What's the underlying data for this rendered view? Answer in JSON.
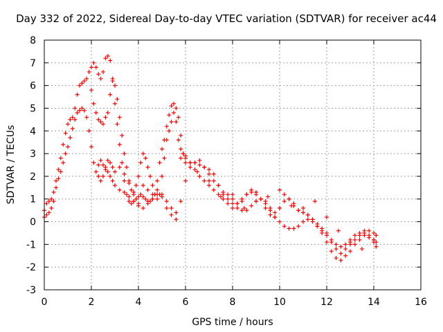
{
  "chart_data": {
    "type": "scatter",
    "title": "Day 332 of 2022, Sidereal Day-to-day VTEC variation (SDTVAR) for receiver ac44",
    "xlabel": "GPS time / hours",
    "ylabel": "SDTVAR / TECUs",
    "xlim": [
      0,
      16
    ],
    "ylim": [
      -3,
      8
    ],
    "xticks": [
      "0",
      "2",
      "4",
      "6",
      "8",
      "10",
      "12",
      "14",
      "16"
    ],
    "yticks": [
      "-3",
      "-2",
      "-1",
      "0",
      "1",
      "2",
      "3",
      "4",
      "5",
      "6",
      "7",
      "8"
    ],
    "grid": true,
    "marker": "+",
    "color": "#ff0000",
    "series": [
      {
        "x": [
          0.0,
          0.1,
          0.2,
          0.3,
          0.4,
          0.5,
          0.6,
          0.7,
          0.8,
          0.9,
          1.0,
          1.1,
          1.2,
          1.3,
          1.4,
          1.5,
          1.6,
          1.7,
          1.8,
          1.9,
          2.0,
          2.1,
          2.2,
          2.3,
          2.4,
          2.5,
          2.6,
          2.7,
          2.8,
          2.9,
          3.0,
          3.1,
          3.2,
          3.3,
          3.4,
          3.5,
          3.6,
          3.7,
          3.8,
          3.9,
          4.0,
          4.1,
          4.2,
          4.3,
          4.4,
          4.5,
          4.6,
          4.7,
          4.8,
          4.9,
          5.0,
          5.1,
          5.2,
          5.3,
          5.4,
          5.5,
          5.6,
          5.7,
          5.8,
          5.9,
          6.0,
          6.2,
          6.4,
          6.6,
          6.8,
          7.0,
          7.2,
          7.4,
          7.6,
          7.8,
          8.0,
          8.2,
          8.4,
          8.6,
          8.8,
          9.0,
          9.2,
          9.4,
          9.6,
          9.8,
          10.0,
          10.2,
          10.4,
          10.6,
          10.8,
          11.0,
          11.2,
          11.4,
          11.6,
          11.8,
          12.0,
          12.2,
          12.4,
          12.6,
          12.8,
          13.0,
          13.2,
          13.4,
          13.6,
          13.8,
          14.0,
          14.1
        ],
        "y": [
          0.5,
          0.8,
          0.9,
          1.0,
          1.3,
          1.8,
          2.3,
          2.8,
          3.4,
          3.9,
          4.3,
          4.5,
          4.6,
          5.0,
          5.6,
          6.0,
          6.1,
          6.2,
          6.3,
          6.6,
          6.8,
          7.0,
          6.8,
          6.5,
          6.3,
          6.6,
          7.2,
          7.3,
          7.1,
          6.3,
          5.2,
          4.3,
          3.4,
          2.6,
          1.8,
          1.2,
          0.9,
          0.8,
          0.9,
          1.0,
          1.1,
          1.2,
          1.1,
          1.0,
          0.9,
          0.9,
          1.0,
          1.2,
          1.8,
          2.6,
          3.2,
          3.6,
          4.2,
          4.7,
          5.1,
          5.2,
          4.4,
          3.6,
          3.2,
          3.0,
          2.8,
          2.6,
          2.6,
          2.5,
          2.4,
          2.3,
          2.1,
          1.6,
          1.2,
          1.0,
          0.8,
          0.6,
          0.5,
          0.5,
          0.7,
          0.9,
          1.0,
          0.9,
          0.6,
          0.4,
          0.6,
          0.9,
          1.0,
          0.8,
          0.5,
          0.4,
          0.3,
          0.1,
          -0.2,
          -0.5,
          -0.9,
          -1.3,
          -1.6,
          -1.7,
          -1.5,
          -1.3,
          -1.0,
          -0.8,
          -0.6,
          -0.7,
          -0.8,
          -0.9
        ]
      },
      {
        "x": [
          0.0,
          0.1,
          0.2,
          0.3,
          0.4,
          0.5,
          0.6,
          0.7,
          0.8,
          0.9,
          1.0,
          1.1,
          1.2,
          1.3,
          1.4,
          1.5,
          1.6,
          1.7,
          1.8,
          1.9,
          2.0,
          2.1,
          2.2,
          2.3,
          2.4,
          2.5,
          2.6,
          2.7,
          2.8,
          2.9,
          3.0,
          3.2,
          3.4,
          3.6,
          3.8,
          4.0,
          4.2,
          4.4,
          4.6,
          4.8,
          5.0,
          5.2,
          5.4,
          5.6,
          5.8,
          6.0,
          6.2,
          6.4,
          6.6,
          6.8,
          7.0,
          7.2,
          7.4,
          7.6,
          7.8,
          8.0,
          8.2,
          8.4,
          8.6,
          8.8,
          9.0,
          9.2,
          9.4,
          9.6,
          9.8,
          10.0,
          10.2,
          10.4,
          10.6,
          10.8,
          11.0,
          11.2,
          11.4,
          11.6,
          11.8,
          12.0,
          12.2,
          12.4,
          12.6,
          12.8,
          13.0,
          13.2,
          13.4,
          13.6,
          13.8,
          14.0,
          14.1
        ],
        "y": [
          0.2,
          0.3,
          0.4,
          0.6,
          0.9,
          1.5,
          1.9,
          2.2,
          2.6,
          3.0,
          3.3,
          3.7,
          4.1,
          4.5,
          4.8,
          4.9,
          5.0,
          4.9,
          4.6,
          4.0,
          3.3,
          2.6,
          2.2,
          2.5,
          2.7,
          2.5,
          2.3,
          2.2,
          2.0,
          1.8,
          1.6,
          1.4,
          1.3,
          1.1,
          0.9,
          0.7,
          0.6,
          0.8,
          1.0,
          1.2,
          1.1,
          0.9,
          0.6,
          0.4,
          2.8,
          2.9,
          2.6,
          2.3,
          2.0,
          1.8,
          1.6,
          1.4,
          1.2,
          1.0,
          0.8,
          0.6,
          0.8,
          1.0,
          1.2,
          1.3,
          1.2,
          1.0,
          0.8,
          0.5,
          0.2,
          0.0,
          -0.2,
          -0.3,
          -0.3,
          -0.2,
          0.0,
          0.1,
          0.0,
          -0.2,
          -0.4,
          -0.6,
          -0.9,
          -1.2,
          -1.4,
          -1.2,
          -1.0,
          -0.8,
          -0.6,
          -0.5,
          -0.4,
          -0.5,
          -0.6
        ]
      },
      {
        "x": [
          2.0,
          2.1,
          2.2,
          2.3,
          2.4,
          2.5,
          2.6,
          2.7,
          2.8,
          2.9,
          3.0,
          3.1,
          3.2,
          3.3,
          3.4,
          3.5,
          3.6,
          3.7,
          3.8,
          3.9,
          4.0,
          4.1,
          4.2,
          4.3,
          4.4,
          4.5,
          4.6,
          4.7,
          4.8,
          4.9,
          5.0,
          5.1,
          5.2,
          5.3,
          5.4,
          5.5,
          5.6,
          5.7,
          5.8,
          5.9,
          6.0,
          6.2,
          6.4,
          6.6,
          6.8,
          7.0,
          7.2,
          7.4,
          7.6,
          7.8,
          8.0,
          8.2,
          8.4,
          8.6,
          8.8,
          9.0,
          9.2,
          9.4,
          9.6,
          9.8,
          10.0,
          10.2,
          10.4,
          10.6,
          10.8,
          11.0,
          11.2,
          11.4,
          11.6,
          11.8,
          12.0,
          12.2,
          12.4,
          12.6,
          12.8,
          13.0,
          13.2,
          13.4,
          13.6,
          13.8,
          14.0,
          14.1
        ],
        "y": [
          5.8,
          5.2,
          4.8,
          4.5,
          4.4,
          4.3,
          4.6,
          4.8,
          5.6,
          6.2,
          6.0,
          5.4,
          4.6,
          3.8,
          3.0,
          2.4,
          1.8,
          1.4,
          1.3,
          1.6,
          2.0,
          2.6,
          3.0,
          2.8,
          2.4,
          2.0,
          1.6,
          1.2,
          1.0,
          1.2,
          2.0,
          2.8,
          3.6,
          4.0,
          4.4,
          4.8,
          5.0,
          4.6,
          3.8,
          3.0,
          2.6,
          2.4,
          2.6,
          2.7,
          2.4,
          2.1,
          1.8,
          1.6,
          1.3,
          1.2,
          1.0,
          0.8,
          0.9,
          1.2,
          1.4,
          1.3,
          1.0,
          0.6,
          0.3,
          0.2,
          0.6,
          1.2,
          1.0,
          0.7,
          0.5,
          0.4,
          0.3,
          0.1,
          -0.1,
          -0.3,
          -0.5,
          -0.8,
          -1.0,
          -1.1,
          -1.0,
          -0.8,
          -0.6,
          -0.5,
          -0.4,
          -0.6,
          -0.8,
          -1.1
        ]
      },
      {
        "x": [
          2.3,
          2.4,
          2.5,
          2.6,
          2.7,
          2.8,
          2.9,
          3.0,
          3.2,
          3.4,
          3.6,
          3.8,
          4.0,
          4.2,
          4.4,
          4.6,
          4.8,
          5.0,
          5.2,
          5.4,
          5.6,
          5.8,
          6.0,
          6.5,
          7.0,
          7.5,
          8.0,
          8.5,
          9.0,
          9.5,
          10.0,
          10.5,
          11.0,
          11.5,
          12.0,
          12.5,
          13.0,
          13.5,
          14.0
        ],
        "y": [
          2.0,
          1.8,
          2.0,
          2.4,
          2.7,
          2.6,
          2.4,
          2.2,
          2.4,
          2.1,
          1.7,
          1.2,
          0.8,
          1.6,
          1.4,
          1.2,
          1.4,
          1.2,
          0.6,
          0.3,
          0.1,
          0.9,
          1.8,
          2.2,
          1.8,
          1.1,
          1.2,
          0.6,
          0.9,
          1.1,
          1.4,
          0.7,
          0.6,
          0.9,
          0.2,
          -0.4,
          -0.9,
          -1.2,
          -0.9
        ]
      }
    ]
  }
}
